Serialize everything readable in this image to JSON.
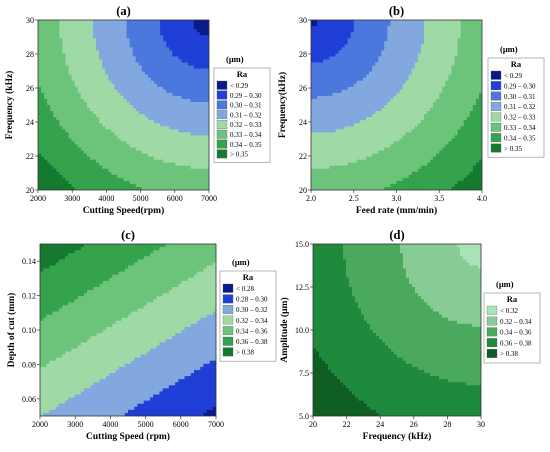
{
  "chart_data": [
    {
      "type": "heatmap",
      "subtype": "contour",
      "title": "(a)",
      "xlabel": "Cutting Speed(rpm)",
      "ylabel": "Frequency (kHz)",
      "xlim": [
        2000,
        7000
      ],
      "ylim": [
        20,
        30
      ],
      "xticks": [
        2000,
        3000,
        4000,
        5000,
        6000,
        7000
      ],
      "yticks": [
        20,
        22,
        24,
        26,
        28,
        30
      ],
      "legend_unit": "(μm)",
      "legend_title": "Ra",
      "legend_entries": [
        "<  0.29",
        "0.29 – 0.30",
        "0.30 – 0.31",
        "0.31 – 0.32",
        "0.32 – 0.33",
        "0.33 – 0.34",
        "0.34 – 0.35",
        ">  0.35"
      ],
      "legend_colors": [
        "#0a1a8a",
        "#1f3fd6",
        "#4a78dc",
        "#82a8df",
        "#9ed9a6",
        "#6cc47b",
        "#35a24c",
        "#157a30"
      ],
      "levels": [
        0.29,
        0.3,
        0.31,
        0.32,
        0.33,
        0.34,
        0.35
      ],
      "fill_colors": [
        "#157a30",
        "#35a24c",
        "#6cc47b",
        "#9ed9a6",
        "#82a8df",
        "#4a78dc",
        "#1f3fd6",
        "#0a1a8a"
      ],
      "min_corner": "top-right",
      "z_range": [
        0.285,
        0.358
      ]
    },
    {
      "type": "heatmap",
      "subtype": "contour",
      "title": "(b)",
      "xlabel": "Feed rate (mm/min)",
      "ylabel": "Frequency(kHz)",
      "xlim": [
        2.0,
        4.0
      ],
      "ylim": [
        20,
        30
      ],
      "xticks": [
        2.0,
        2.5,
        3.0,
        3.5,
        4.0
      ],
      "yticks": [
        20,
        22,
        24,
        26,
        28,
        30
      ],
      "legend_unit": "(μm)",
      "legend_title": "Ra",
      "legend_entries": [
        "<  0.29",
        "0.29 – 0.30",
        "0.30 – 0.31",
        "0.31 – 0.32",
        "0.32 – 0.33",
        "0.33 – 0.34",
        "0.34 – 0.35",
        ">  0.35"
      ],
      "legend_colors": [
        "#0a1a8a",
        "#1f3fd6",
        "#4a78dc",
        "#82a8df",
        "#9ed9a6",
        "#6cc47b",
        "#35a24c",
        "#157a30"
      ],
      "levels": [
        0.29,
        0.3,
        0.31,
        0.32,
        0.33,
        0.34,
        0.35
      ],
      "fill_colors": [
        "#157a30",
        "#35a24c",
        "#6cc47b",
        "#9ed9a6",
        "#82a8df",
        "#4a78dc",
        "#1f3fd6",
        "#0a1a8a"
      ],
      "min_corner": "top-left",
      "z_range": [
        0.288,
        0.356
      ]
    },
    {
      "type": "heatmap",
      "subtype": "contour",
      "title": "(c)",
      "xlabel": "Cutting Speed (rpm)",
      "ylabel": "Depth of cut (mm)",
      "xlim": [
        2000,
        7000
      ],
      "ylim": [
        0.05,
        0.15
      ],
      "xticks": [
        2000,
        3000,
        4000,
        5000,
        6000,
        7000
      ],
      "yticks": [
        0.06,
        0.08,
        0.1,
        0.12,
        0.14
      ],
      "legend_unit": "(μm)",
      "legend_title": "Ra",
      "legend_entries": [
        "<  0.28",
        "0.28 – 0.30",
        "0.30 – 0.32",
        "0.32 – 0.34",
        "0.34 – 0.36",
        "0.36 – 0.38",
        ">  0.38"
      ],
      "legend_colors": [
        "#0a1a8a",
        "#1f3fd6",
        "#82a8df",
        "#9ed9a6",
        "#6cc47b",
        "#35a24c",
        "#157a30"
      ],
      "levels": [
        0.28,
        0.3,
        0.32,
        0.34,
        0.36,
        0.38
      ],
      "fill_colors": [
        "#157a30",
        "#35a24c",
        "#6cc47b",
        "#9ed9a6",
        "#82a8df",
        "#1f3fd6",
        "#0a1a8a"
      ],
      "min_corner": "bottom-right",
      "z_range": [
        0.276,
        0.392
      ]
    },
    {
      "type": "heatmap",
      "subtype": "contour",
      "title": "(d)",
      "xlabel": "Frequency (kHz)",
      "ylabel": "Amplitude   (μm)",
      "xlim": [
        20,
        30
      ],
      "ylim": [
        5.0,
        15.0
      ],
      "xticks": [
        20,
        22,
        24,
        26,
        28,
        30
      ],
      "yticks": [
        5.0,
        7.5,
        10.0,
        12.5,
        15.0
      ],
      "legend_unit": "(μm)",
      "legend_title": "Ra",
      "legend_entries": [
        "<  0.32",
        "0.32 – 0.34",
        "0.34 – 0.36",
        "0.36 – 0.38",
        ">  0.38"
      ],
      "legend_colors": [
        "#a9e3b8",
        "#86cc94",
        "#4aa95c",
        "#1f8a3c",
        "#0e5e26"
      ],
      "levels": [
        0.32,
        0.34,
        0.36,
        0.38
      ],
      "fill_colors": [
        "#0e5e26",
        "#1f8a3c",
        "#4aa95c",
        "#86cc94",
        "#a9e3b8"
      ],
      "min_corner": "top-right",
      "z_range": [
        0.312,
        0.395
      ]
    }
  ]
}
